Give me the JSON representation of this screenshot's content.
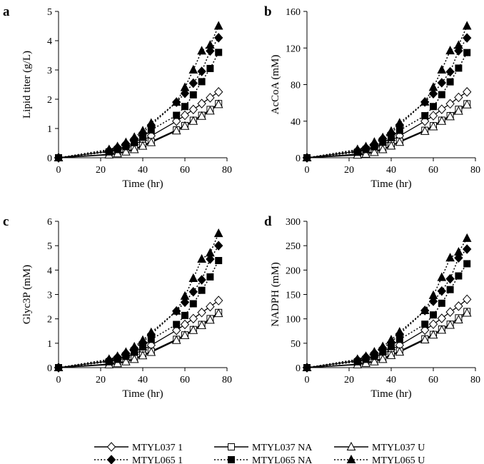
{
  "chart_data": [
    {
      "type": "line",
      "panel": "a",
      "ylabel": "Lipid titer (g/L)",
      "xlabel": "Time (hr)",
      "xlim": [
        0,
        80
      ],
      "ylim": [
        0,
        5
      ],
      "xticks": [
        0,
        20,
        40,
        60,
        80
      ],
      "yticks": [
        0,
        1,
        2,
        3,
        4,
        5
      ],
      "x": [
        0,
        24,
        28,
        32,
        36,
        40,
        44,
        56,
        60,
        64,
        68,
        72,
        76
      ],
      "series": [
        {
          "name": "MTYL037 1",
          "values": [
            0,
            0.22,
            0.28,
            0.35,
            0.45,
            0.6,
            0.75,
            1.25,
            1.45,
            1.65,
            1.85,
            2.05,
            2.25
          ]
        },
        {
          "name": "MTYL037 NA",
          "values": [
            0,
            0.12,
            0.16,
            0.22,
            0.3,
            0.42,
            0.55,
            0.95,
            1.1,
            1.28,
            1.45,
            1.65,
            1.85
          ]
        },
        {
          "name": "MTYL037 U",
          "values": [
            0,
            0.1,
            0.14,
            0.2,
            0.28,
            0.4,
            0.52,
            0.92,
            1.08,
            1.25,
            1.42,
            1.6,
            1.82
          ]
        },
        {
          "name": "MTYL065 1",
          "values": [
            0,
            0.25,
            0.35,
            0.48,
            0.65,
            0.85,
            1.12,
            1.9,
            2.2,
            2.55,
            2.95,
            3.65,
            4.1
          ]
        },
        {
          "name": "MTYL065 NA",
          "values": [
            0,
            0.2,
            0.28,
            0.38,
            0.52,
            0.7,
            0.95,
            1.45,
            1.75,
            2.15,
            2.6,
            3.05,
            3.6
          ]
        },
        {
          "name": "MTYL065 U",
          "values": [
            0,
            0.28,
            0.38,
            0.52,
            0.7,
            0.92,
            1.18,
            1.9,
            2.4,
            3.0,
            3.65,
            3.85,
            4.5
          ]
        }
      ]
    },
    {
      "type": "line",
      "panel": "b",
      "ylabel": "AcCoA (mM)",
      "xlabel": "Time (hr)",
      "xlim": [
        0,
        80
      ],
      "ylim": [
        0,
        160
      ],
      "xticks": [
        0,
        20,
        40,
        60,
        80
      ],
      "yticks": [
        0,
        40,
        80,
        120,
        160
      ],
      "x": [
        0,
        24,
        28,
        32,
        36,
        40,
        44,
        56,
        60,
        64,
        68,
        72,
        76
      ],
      "series": [
        {
          "name": "MTYL037 1",
          "values": [
            0,
            7,
            9,
            11,
            14,
            19,
            24,
            40,
            46,
            53,
            59,
            66,
            72
          ]
        },
        {
          "name": "MTYL037 NA",
          "values": [
            0,
            4,
            5,
            7,
            10,
            13,
            18,
            30,
            35,
            41,
            46,
            53,
            59
          ]
        },
        {
          "name": "MTYL037 U",
          "values": [
            0,
            3,
            4,
            6,
            9,
            13,
            17,
            29,
            34,
            40,
            45,
            51,
            58
          ]
        },
        {
          "name": "MTYL065 1",
          "values": [
            0,
            8,
            11,
            15,
            21,
            27,
            36,
            61,
            70,
            82,
            94,
            117,
            131
          ]
        },
        {
          "name": "MTYL065 NA",
          "values": [
            0,
            6,
            9,
            12,
            17,
            22,
            30,
            46,
            56,
            69,
            83,
            98,
            115
          ]
        },
        {
          "name": "MTYL065 U",
          "values": [
            0,
            9,
            12,
            17,
            22,
            29,
            38,
            61,
            77,
            96,
            117,
            123,
            144
          ]
        }
      ]
    },
    {
      "type": "line",
      "panel": "c",
      "ylabel": "Glyc3P (mM)",
      "xlabel": "Time (hr)",
      "xlim": [
        0,
        80
      ],
      "ylim": [
        0,
        6
      ],
      "xticks": [
        0,
        20,
        40,
        60,
        80
      ],
      "yticks": [
        0,
        1,
        2,
        3,
        4,
        5,
        6
      ],
      "x": [
        0,
        24,
        28,
        32,
        36,
        40,
        44,
        56,
        60,
        64,
        68,
        72,
        76
      ],
      "series": [
        {
          "name": "MTYL037 1",
          "values": [
            0,
            0.27,
            0.34,
            0.43,
            0.55,
            0.73,
            0.92,
            1.53,
            1.77,
            2.01,
            2.26,
            2.5,
            2.75
          ]
        },
        {
          "name": "MTYL037 NA",
          "values": [
            0,
            0.15,
            0.2,
            0.27,
            0.37,
            0.51,
            0.67,
            1.16,
            1.34,
            1.56,
            1.77,
            2.01,
            2.26
          ]
        },
        {
          "name": "MTYL037 U",
          "values": [
            0,
            0.12,
            0.17,
            0.24,
            0.34,
            0.49,
            0.63,
            1.12,
            1.32,
            1.53,
            1.73,
            1.95,
            2.22
          ]
        },
        {
          "name": "MTYL065 1",
          "values": [
            0,
            0.31,
            0.43,
            0.59,
            0.79,
            1.04,
            1.37,
            2.32,
            2.68,
            3.11,
            3.6,
            4.45,
            5.0
          ]
        },
        {
          "name": "MTYL065 NA",
          "values": [
            0,
            0.24,
            0.34,
            0.46,
            0.63,
            0.85,
            1.16,
            1.77,
            2.14,
            2.62,
            3.17,
            3.72,
            4.39
          ]
        },
        {
          "name": "MTYL065 U",
          "values": [
            0,
            0.34,
            0.46,
            0.63,
            0.85,
            1.12,
            1.44,
            2.32,
            2.93,
            3.66,
            4.45,
            4.7,
            5.5
          ]
        }
      ]
    },
    {
      "type": "line",
      "panel": "d",
      "ylabel": "NADPH (mM)",
      "xlabel": "Time (hr)",
      "xlim": [
        0,
        80
      ],
      "ylim": [
        0,
        300
      ],
      "xticks": [
        0,
        20,
        40,
        60,
        80
      ],
      "yticks": [
        0,
        50,
        100,
        150,
        200,
        250,
        300
      ],
      "x": [
        0,
        24,
        28,
        32,
        36,
        40,
        44,
        56,
        60,
        64,
        68,
        72,
        76
      ],
      "series": [
        {
          "name": "MTYL037 1",
          "values": [
            0,
            14,
            17,
            22,
            28,
            37,
            46,
            77,
            89,
            101,
            114,
            126,
            140
          ]
        },
        {
          "name": "MTYL037 NA",
          "values": [
            0,
            7,
            10,
            14,
            19,
            26,
            34,
            59,
            68,
            79,
            89,
            102,
            115
          ]
        },
        {
          "name": "MTYL037 U",
          "values": [
            0,
            6,
            9,
            12,
            17,
            25,
            32,
            57,
            67,
            77,
            87,
            98,
            112
          ]
        },
        {
          "name": "MTYL065 1",
          "values": [
            0,
            16,
            22,
            30,
            40,
            52,
            69,
            117,
            136,
            157,
            182,
            225,
            243
          ]
        },
        {
          "name": "MTYL065 NA",
          "values": [
            0,
            12,
            17,
            23,
            32,
            43,
            58,
            89,
            108,
            132,
            160,
            188,
            213
          ]
        },
        {
          "name": "MTYL065 U",
          "values": [
            0,
            17,
            23,
            32,
            43,
            57,
            73,
            117,
            148,
            185,
            225,
            237,
            265
          ]
        }
      ]
    }
  ],
  "legend": {
    "placement": "bottom",
    "items": [
      {
        "label": "MTYL037 1",
        "marker": "open-diamond",
        "line": "solid"
      },
      {
        "label": "MTYL037 NA",
        "marker": "open-square",
        "line": "solid"
      },
      {
        "label": "MTYL037 U",
        "marker": "open-triangle",
        "line": "solid"
      },
      {
        "label": "MTYL065 1",
        "marker": "filled-diamond",
        "line": "dotted"
      },
      {
        "label": "MTYL065 NA",
        "marker": "filled-square",
        "line": "dotted"
      },
      {
        "label": "MTYL065 U",
        "marker": "filled-triangle",
        "line": "dotted"
      }
    ]
  }
}
